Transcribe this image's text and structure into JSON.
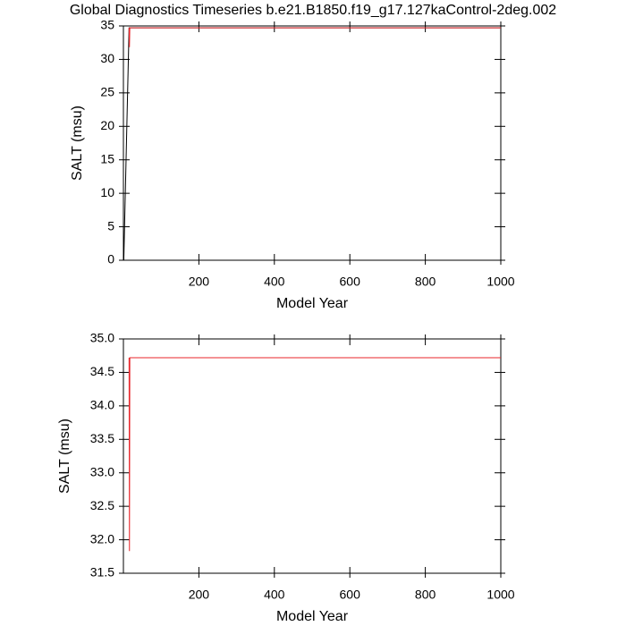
{
  "chart_data": [
    {
      "type": "line",
      "title": "Global Diagnostics Timeseries b.e21.B1850.f19_g17.127kaControl-2deg.002",
      "xlabel": "Model Year",
      "ylabel": "SALT (msu)",
      "x": [
        1,
        15,
        16,
        17,
        1000
      ],
      "xlim": [
        0,
        1000
      ],
      "xticks": [
        200,
        400,
        600,
        800,
        1000
      ],
      "ylim": [
        0,
        35
      ],
      "yticks": [
        0,
        5,
        10,
        15,
        20,
        25,
        30,
        35
      ],
      "series": [
        {
          "color": "#000000",
          "values": [
            0,
            34.72,
            34.72,
            34.72,
            34.72
          ]
        },
        {
          "color": "#e8262b",
          "values": [
            null,
            34.72,
            31.83,
            34.72,
            34.72
          ]
        }
      ]
    },
    {
      "type": "line",
      "xlabel": "Model Year",
      "ylabel": "SALT (msu)",
      "x": [
        1,
        15,
        16,
        17,
        1000
      ],
      "xlim": [
        0,
        1000
      ],
      "xticks": [
        200,
        400,
        600,
        800,
        1000
      ],
      "ylim": [
        31.5,
        35
      ],
      "yticks": [
        {
          "value": 31.5,
          "label": "31.5"
        },
        {
          "value": 32,
          "label": "32.0"
        },
        {
          "value": 32.5,
          "label": "32.5"
        },
        {
          "value": 33,
          "label": "33.0"
        },
        {
          "value": 33.5,
          "label": "33.5"
        },
        {
          "value": 34,
          "label": "34.0"
        },
        {
          "value": 34.5,
          "label": "34.5"
        },
        {
          "value": 35,
          "label": "35.0"
        }
      ],
      "series": [
        {
          "color": "#e8262b",
          "values": [
            null,
            34.72,
            31.83,
            34.72,
            34.72
          ]
        }
      ]
    }
  ]
}
